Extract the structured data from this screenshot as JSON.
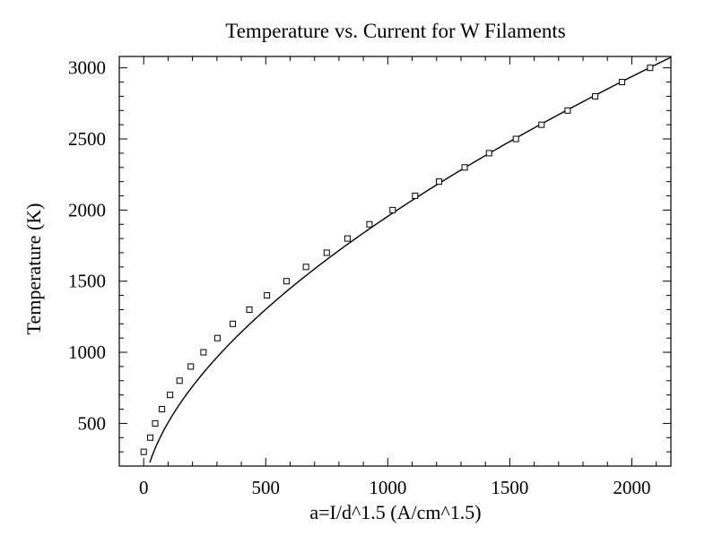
{
  "chart_data": {
    "type": "scatter",
    "title": "Temperature vs. Current for W Filaments",
    "xlabel": "a=I/d^1.5 (A/cm^1.5)",
    "ylabel": "Temperature (K)",
    "xlim": [
      -100,
      2160
    ],
    "ylim": [
      200,
      3080
    ],
    "x_ticks": [
      0,
      500,
      1000,
      1500,
      2000
    ],
    "y_ticks": [
      500,
      1000,
      1500,
      2000,
      2500,
      3000
    ],
    "x_tick_labels": [
      "0",
      "500",
      "1000",
      "1500",
      "2000"
    ],
    "y_tick_labels": [
      "500",
      "1000",
      "1500",
      "2000",
      "2500",
      "3000"
    ],
    "grid": false,
    "series": [
      {
        "marker": "open-square",
        "points": [
          {
            "x": 0,
            "y": 300
          },
          {
            "x": 27,
            "y": 400
          },
          {
            "x": 47,
            "y": 500
          },
          {
            "x": 75,
            "y": 600
          },
          {
            "x": 108,
            "y": 700
          },
          {
            "x": 147,
            "y": 800
          },
          {
            "x": 193,
            "y": 900
          },
          {
            "x": 245,
            "y": 1000
          },
          {
            "x": 302,
            "y": 1100
          },
          {
            "x": 365,
            "y": 1200
          },
          {
            "x": 433,
            "y": 1300
          },
          {
            "x": 505,
            "y": 1400
          },
          {
            "x": 585,
            "y": 1500
          },
          {
            "x": 665,
            "y": 1600
          },
          {
            "x": 750,
            "y": 1700
          },
          {
            "x": 835,
            "y": 1800
          },
          {
            "x": 925,
            "y": 1900
          },
          {
            "x": 1020,
            "y": 2000
          },
          {
            "x": 1112,
            "y": 2100
          },
          {
            "x": 1210,
            "y": 2200
          },
          {
            "x": 1315,
            "y": 2300
          },
          {
            "x": 1415,
            "y": 2400
          },
          {
            "x": 1525,
            "y": 2500
          },
          {
            "x": 1630,
            "y": 2600
          },
          {
            "x": 1737,
            "y": 2700
          },
          {
            "x": 1850,
            "y": 2800
          },
          {
            "x": 1960,
            "y": 2900
          },
          {
            "x": 2075,
            "y": 3000
          }
        ]
      },
      {
        "marker": "line",
        "fit": {
          "form": "T = A * a^p",
          "A": 33.84,
          "p": 0.5873
        },
        "x_range": [
          25,
          2160
        ]
      }
    ]
  }
}
